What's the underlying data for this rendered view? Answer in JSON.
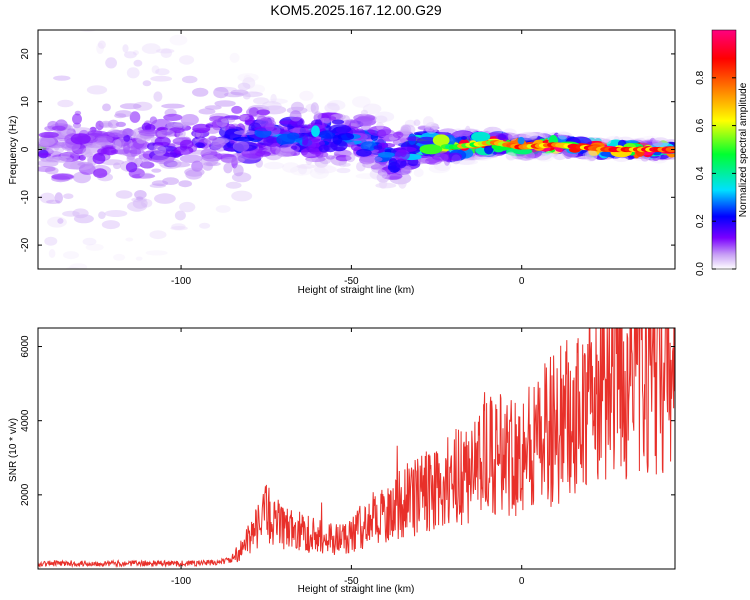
{
  "title": "KOM5.2025.167.12.00.G29",
  "chart_data": [
    {
      "type": "heatmap",
      "xlabel": "Height of straight line (km)",
      "ylabel": "Frequency (Hz)",
      "xlim": [
        -142,
        45
      ],
      "ylim": [
        -25,
        25
      ],
      "xticks": [
        -100,
        -50,
        0
      ],
      "yticks": [
        -20,
        -10,
        0,
        10,
        20
      ],
      "colorbar": {
        "label": "Normalized spectral amplitude",
        "range": [
          0,
          1
        ],
        "ticks": [
          0.0,
          0.2,
          0.4,
          0.6,
          0.8
        ],
        "colors": [
          "#ffffff",
          "#c8a0f5",
          "#7a00ff",
          "#0000ff",
          "#00e0ff",
          "#00ff30",
          "#ffff00",
          "#ff8000",
          "#ff0000",
          "#ff0080"
        ]
      },
      "ridge": [
        {
          "x": -140,
          "freq": 0.5,
          "spread": 22,
          "amp": 0.15
        },
        {
          "x": -110,
          "freq": 1.0,
          "spread": 20,
          "amp": 0.18
        },
        {
          "x": -85,
          "freq": 2.0,
          "spread": 14,
          "amp": 0.22
        },
        {
          "x": -75,
          "freq": 3.5,
          "spread": 6,
          "amp": 0.3
        },
        {
          "x": -60,
          "freq": 3.0,
          "spread": 6,
          "amp": 0.32
        },
        {
          "x": -45,
          "freq": 2.0,
          "spread": 6,
          "amp": 0.3
        },
        {
          "x": -38,
          "freq": -2.0,
          "spread": 6,
          "amp": 0.3
        },
        {
          "x": -30,
          "freq": 1.0,
          "spread": 4,
          "amp": 0.45
        },
        {
          "x": -20,
          "freq": 0.5,
          "spread": 2.5,
          "amp": 0.7
        },
        {
          "x": -8,
          "freq": 1.5,
          "spread": 2,
          "amp": 0.75
        },
        {
          "x": 0,
          "freq": 0.5,
          "spread": 1.5,
          "amp": 0.85
        },
        {
          "x": 10,
          "freq": 1.0,
          "spread": 1.5,
          "amp": 0.88
        },
        {
          "x": 25,
          "freq": 0.0,
          "spread": 1.2,
          "amp": 0.9
        },
        {
          "x": 45,
          "freq": 0.0,
          "spread": 1.2,
          "amp": 0.9
        }
      ]
    },
    {
      "type": "line",
      "xlabel": "Height of straight line (km)",
      "ylabel": "SNR (10 * v/v)",
      "xlim": [
        -142,
        45
      ],
      "ylim": [
        0,
        6500
      ],
      "xticks": [
        -100,
        -50,
        0
      ],
      "yticks": [
        2000,
        4000,
        6000
      ],
      "line_color": "#e8302a",
      "series": [
        {
          "x": [
            -142,
            -120,
            -100,
            -90,
            -85,
            -80,
            -75,
            -70,
            -65,
            -60,
            -55,
            -50,
            -45,
            -40,
            -35,
            -30,
            -25,
            -20,
            -15,
            -10,
            -5,
            0,
            5,
            10,
            15,
            20,
            25,
            30,
            35,
            40,
            45
          ],
          "values": [
            150,
            150,
            150,
            170,
            250,
            800,
            1500,
            1100,
            1000,
            900,
            800,
            900,
            1300,
            1500,
            1800,
            2000,
            2200,
            2400,
            2700,
            3000,
            3100,
            3200,
            3500,
            3800,
            4100,
            4500,
            4900,
            5200,
            5500,
            5600,
            5600
          ]
        }
      ]
    }
  ]
}
